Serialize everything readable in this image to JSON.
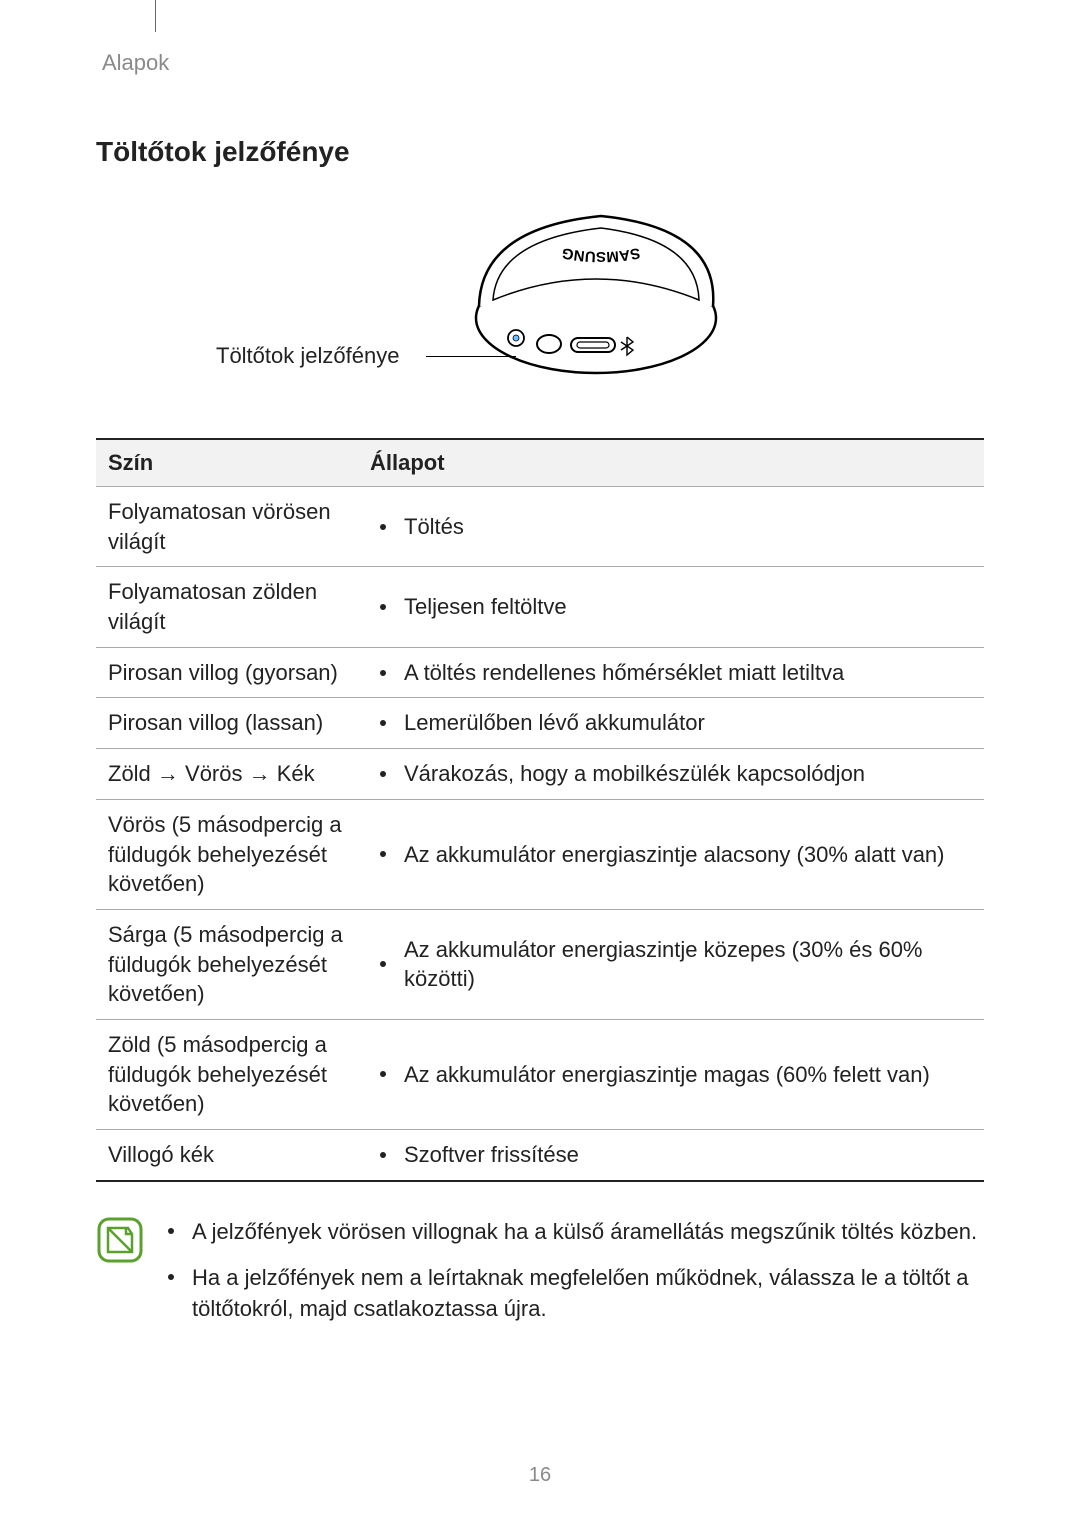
{
  "breadcrumb": "Alapok",
  "section_title": "Töltőtok jelzőfénye",
  "figure_label": "Töltőtok jelzőfénye",
  "table": {
    "columns": [
      "Szín",
      "Állapot"
    ],
    "rows": [
      {
        "color": "Folyamatosan vörösen világít",
        "status": "Töltés"
      },
      {
        "color": "Folyamatosan zölden világít",
        "status": "Teljesen feltöltve"
      },
      {
        "color": "Pirosan villog (gyorsan)",
        "status": "A töltés rendellenes hőmérséklet miatt letiltva"
      },
      {
        "color": "Pirosan villog (lassan)",
        "status": "Lemerülőben lévő akkumulátor"
      },
      {
        "color": "Zöld → Vörös → Kék",
        "status": "Várakozás, hogy a mobilkészülék kapcsolódjon"
      },
      {
        "color": "Vörös (5 másodpercig a füldugók behelyezését követően)",
        "status": "Az akkumulátor energiaszintje alacsony (30% alatt van)"
      },
      {
        "color": "Sárga (5 másodpercig a füldugók behelyezését követően)",
        "status": "Az akkumulátor energiaszintje közepes (30% és 60% közötti)"
      },
      {
        "color": "Zöld (5 másodpercig a füldugók behelyezését követően)",
        "status": "Az akkumulátor energiaszintje magas (60% felett van)"
      },
      {
        "color": "Villogó kék",
        "status": "Szoftver frissítése"
      }
    ]
  },
  "notes": [
    "A jelzőfények vörösen villognak ha a külső áramellátás megszűnik töltés közben.",
    "Ha a jelzőfények nem a leírtaknak megfelelően működnek, válassza le a töltőt a töltőtokról, majd csatlakoztassa újra."
  ],
  "page_number": "16",
  "colors": {
    "text": "#222222",
    "muted": "#8a8a8a",
    "header_bg": "#f2f2f2",
    "border_light": "#aaaaaa",
    "border_dark": "#222222",
    "note_icon_stroke": "#5aa02c"
  }
}
